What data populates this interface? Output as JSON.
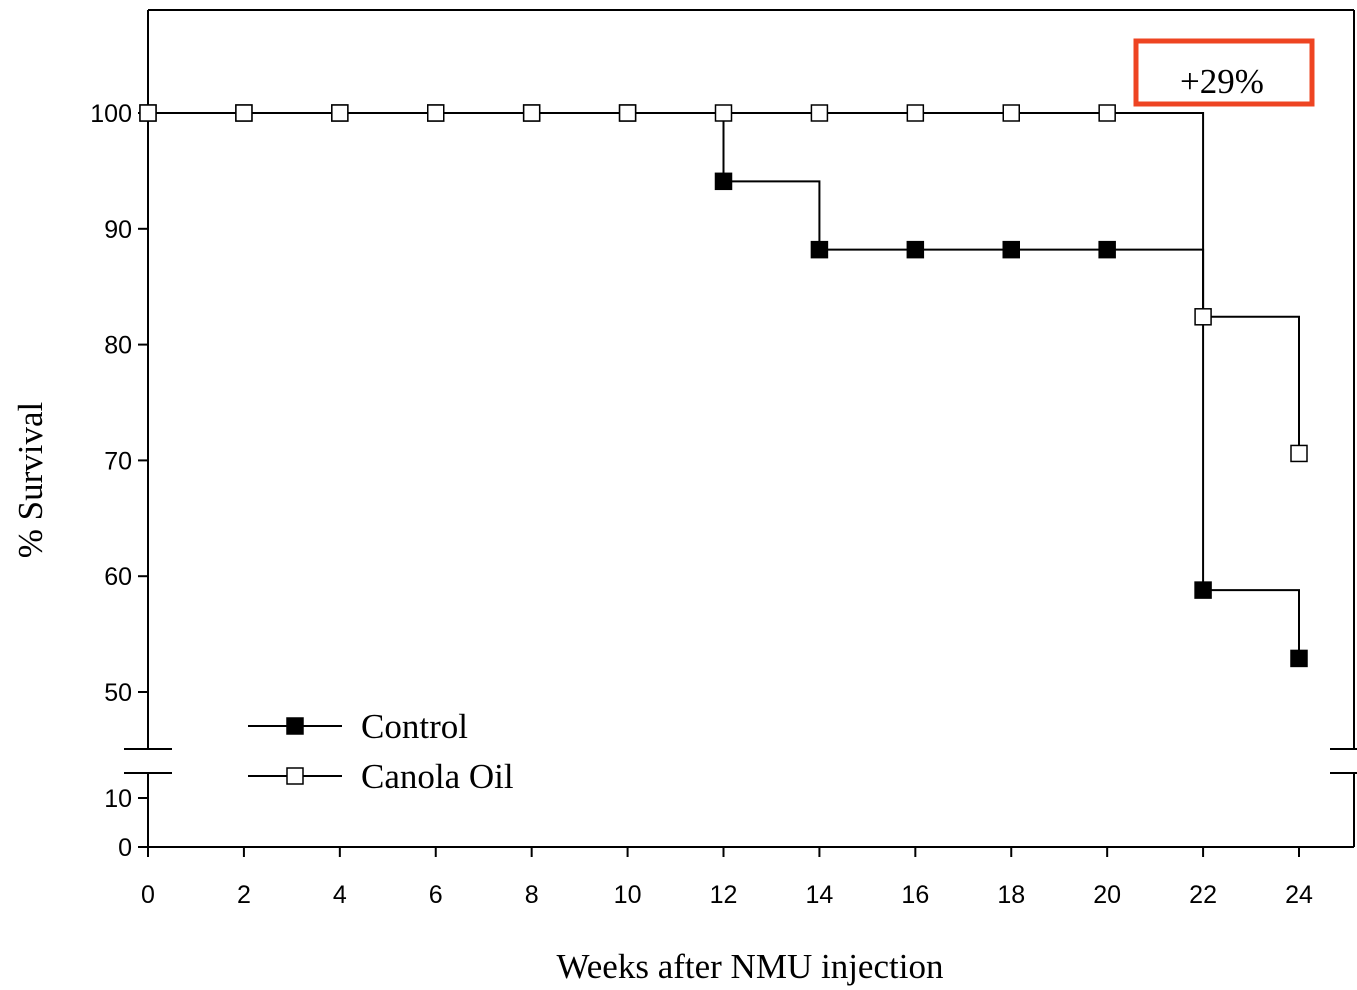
{
  "chart_data": {
    "type": "line",
    "xlabel": "Weeks after NMU injection",
    "ylabel": "% Survival",
    "xlim": [
      0,
      24
    ],
    "x_ticks": [
      0,
      2,
      4,
      6,
      8,
      10,
      12,
      14,
      16,
      18,
      20,
      22,
      24
    ],
    "y_ticks_upper": [
      50,
      60,
      70,
      80,
      90,
      100
    ],
    "y_ticks_lower": [
      0,
      10
    ],
    "y_axis_break": [
      15,
      45
    ],
    "grid": false,
    "legend_position": "bottom-left",
    "step_plot": true,
    "series": [
      {
        "name": "Control",
        "marker": "filled-square",
        "x": [
          0,
          2,
          4,
          6,
          8,
          10,
          12,
          14,
          16,
          18,
          20,
          22,
          24
        ],
        "y": [
          100,
          100,
          100,
          100,
          100,
          100,
          94.1,
          88.2,
          88.2,
          88.2,
          88.2,
          58.8,
          52.9
        ]
      },
      {
        "name": "Canola Oil",
        "marker": "open-square",
        "x": [
          0,
          2,
          4,
          6,
          8,
          10,
          12,
          14,
          16,
          18,
          20,
          22,
          24
        ],
        "y": [
          100,
          100,
          100,
          100,
          100,
          100,
          100,
          100,
          100,
          100,
          100,
          82.4,
          70.6
        ]
      }
    ],
    "annotation": {
      "text": "+29%",
      "border_color": "#ee4422"
    }
  }
}
